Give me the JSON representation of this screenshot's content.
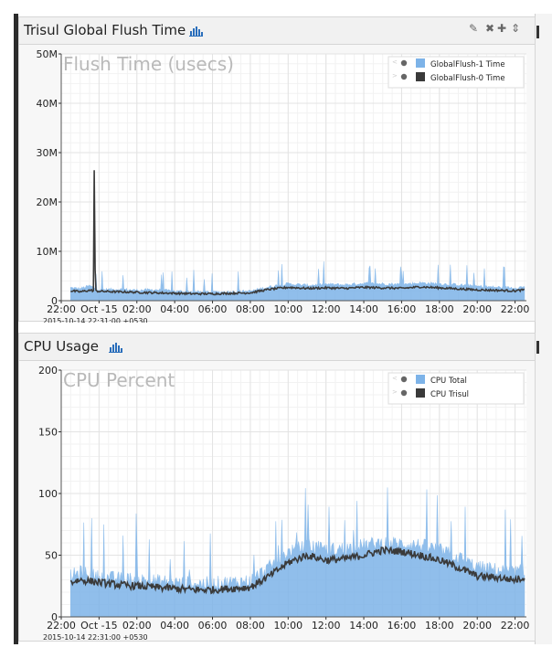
{
  "panels": [
    {
      "title": "Trisul Global Flush Time",
      "tools": {
        "edit": "✎",
        "close": "✖",
        "add": "✚",
        "sort": "⇕"
      },
      "chart_data": {
        "type": "area",
        "title": "Flush Time (usecs)",
        "ylim": [
          0,
          50000000
        ],
        "yticks": [
          {
            "v": 0,
            "label": "0"
          },
          {
            "v": 10000000,
            "label": "10M"
          },
          {
            "v": 20000000,
            "label": "20M"
          },
          {
            "v": 30000000,
            "label": "30M"
          },
          {
            "v": 40000000,
            "label": "40M"
          },
          {
            "v": 50000000,
            "label": "50M"
          }
        ],
        "xlim_hours": [
          22,
          46.6
        ],
        "xticks": [
          "22:00",
          "Oct -15",
          "02:00",
          "04:00",
          "06:00",
          "08:00",
          "10:00",
          "12:00",
          "14:00",
          "16:00",
          "18:00",
          "20:00",
          "22:00"
        ],
        "x_start_label": "2015-10-14 22:31:00 +0530",
        "series": [
          {
            "name": "GlobalFlush-1 Time",
            "color": "#7db3e8",
            "x": [
              22.5,
              23,
              23.5,
              24,
              25,
              26,
              27,
              28,
              29,
              30,
              31,
              32,
              33,
              34,
              35,
              36,
              37,
              38,
              39,
              40,
              41,
              42,
              43,
              44,
              45,
              46,
              46.5
            ],
            "y": [
              2600000,
              2400000,
              3000000,
              2200000,
              2300000,
              2100000,
              2200000,
              1900000,
              1800000,
              1700000,
              1800000,
              1900000,
              2800000,
              3400000,
              3100000,
              3300000,
              3200000,
              3500000,
              3400000,
              3300000,
              3600000,
              3400000,
              3200000,
              2900000,
              2700000,
              2600000,
              2800000
            ]
          },
          {
            "name": "GlobalFlush-0 Time",
            "color": "#3a3a3a",
            "x": [
              22.5,
              23,
              23.5,
              23.7,
              23.75,
              23.8,
              24,
              25,
              26,
              27,
              28,
              29,
              30,
              31,
              32,
              33,
              34,
              35,
              36,
              37,
              38,
              39,
              40,
              41,
              42,
              43,
              44,
              45,
              46,
              46.5
            ],
            "y": [
              2000000,
              1800000,
              2100000,
              2000000,
              28500000,
              2000000,
              1900000,
              1800000,
              1700000,
              1600000,
              1500000,
              1400000,
              1400000,
              1500000,
              1600000,
              2300000,
              2700000,
              2500000,
              2600000,
              2500000,
              2700000,
              2600000,
              2500000,
              2800000,
              2600000,
              2400000,
              2200000,
              2100000,
              2000000,
              2200000
            ]
          }
        ]
      }
    },
    {
      "title": "CPU Usage",
      "chart_data": {
        "type": "area",
        "title": "CPU Percent",
        "ylim": [
          0,
          200
        ],
        "yticks": [
          {
            "v": 0,
            "label": "0"
          },
          {
            "v": 50,
            "label": "50"
          },
          {
            "v": 100,
            "label": "100"
          },
          {
            "v": 150,
            "label": "150"
          },
          {
            "v": 200,
            "label": "200"
          }
        ],
        "xlim_hours": [
          22,
          46.6
        ],
        "xticks": [
          "22:00",
          "Oct -15",
          "02:00",
          "04:00",
          "06:00",
          "08:00",
          "10:00",
          "12:00",
          "14:00",
          "16:00",
          "18:00",
          "20:00",
          "22:00"
        ],
        "x_start_label": "2015-10-14 22:31:00 +0530",
        "series": [
          {
            "name": "CPU Total",
            "color": "#7db3e8",
            "x": [
              22.5,
              23,
              23.5,
              24,
              25,
              26,
              27,
              28,
              29,
              30,
              31,
              32,
              33,
              34,
              35,
              36,
              37,
              38,
              39,
              40,
              41,
              42,
              43,
              44,
              45,
              46,
              46.5
            ],
            "y": [
              33,
              36,
              34,
              32,
              31,
              30,
              29,
              28,
              27,
              27,
              28,
              29,
              40,
              52,
              58,
              54,
              55,
              58,
              60,
              59,
              58,
              54,
              48,
              40,
              38,
              36,
              38
            ]
          },
          {
            "name": "CPU Trisul",
            "color": "#3a3a3a",
            "x": [
              22.5,
              23,
              23.5,
              24,
              25,
              26,
              27,
              28,
              29,
              30,
              31,
              32,
              33,
              34,
              35,
              36,
              37,
              38,
              39,
              40,
              41,
              42,
              43,
              44,
              45,
              46,
              46.5
            ],
            "y": [
              28,
              30,
              29,
              28,
              26,
              25,
              24,
              23,
              22,
              22,
              23,
              24,
              33,
              44,
              50,
              46,
              47,
              50,
              54,
              53,
              50,
              46,
              40,
              33,
              32,
              30,
              32
            ]
          }
        ]
      }
    }
  ]
}
